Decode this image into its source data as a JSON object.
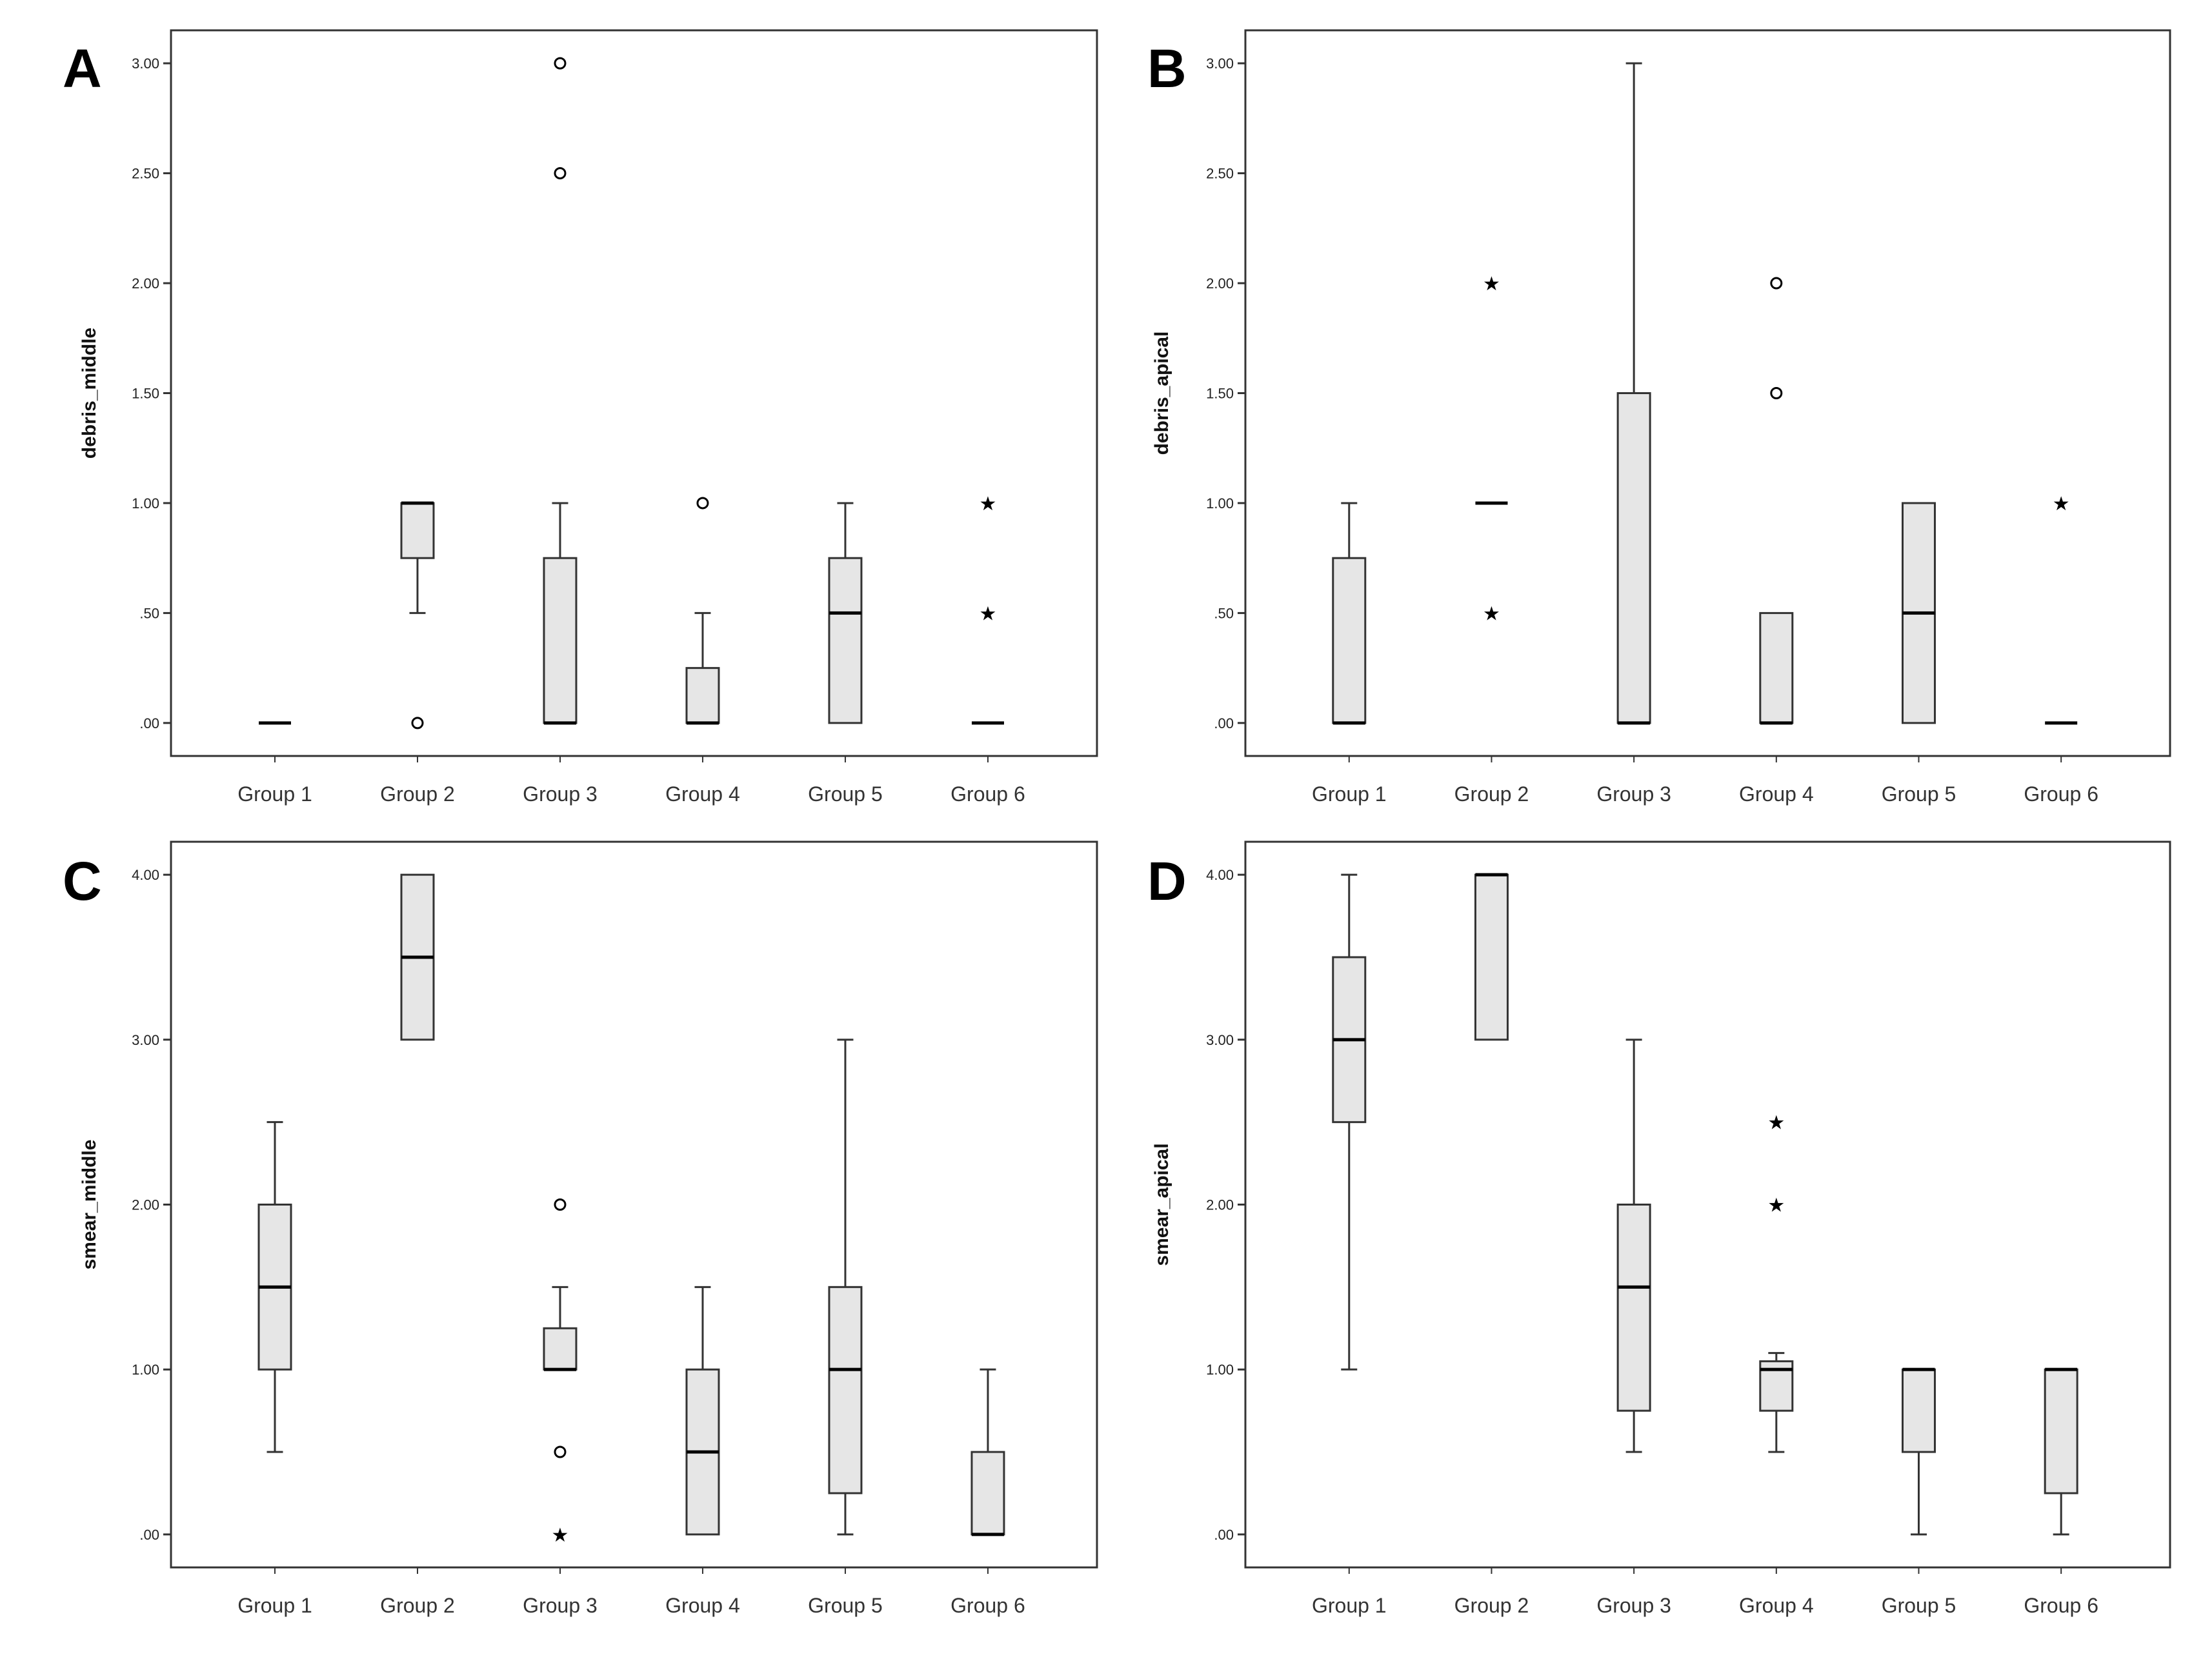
{
  "figure": {
    "colors": {
      "box_fill": "#e6e6e6",
      "stroke": "#333333",
      "median": "#000000",
      "background": "#ffffff"
    }
  },
  "chart_data": [
    {
      "panel": "A",
      "type": "boxplot",
      "ylabel": "debris_middle",
      "xlabel": "",
      "categories": [
        "Group 1",
        "Group 2",
        "Group 3",
        "Group 4",
        "Group 5",
        "Group 6"
      ],
      "ylim": [
        -0.15,
        3.15
      ],
      "yticks": [
        0,
        0.5,
        1,
        1.5,
        2,
        2.5,
        3
      ],
      "ytick_labels": [
        ".00",
        ".50",
        "1.00",
        "1.50",
        "2.00",
        "2.50",
        "3.00"
      ],
      "boxes": [
        {
          "group": "Group 1",
          "wlow": 0,
          "q1": 0,
          "median": 0,
          "q3": 0,
          "whigh": 0,
          "outliers": [],
          "extremes": []
        },
        {
          "group": "Group 2",
          "wlow": 0.5,
          "q1": 0.75,
          "median": 1,
          "q3": 1,
          "whigh": 1,
          "outliers": [
            0
          ],
          "extremes": []
        },
        {
          "group": "Group 3",
          "wlow": 0,
          "q1": 0,
          "median": 0,
          "q3": 0.75,
          "whigh": 1,
          "outliers": [
            2.5,
            3
          ],
          "extremes": []
        },
        {
          "group": "Group 4",
          "wlow": 0,
          "q1": 0,
          "median": 0,
          "q3": 0.25,
          "whigh": 0.5,
          "outliers": [
            1
          ],
          "extremes": []
        },
        {
          "group": "Group 5",
          "wlow": 0,
          "q1": 0,
          "median": 0.5,
          "q3": 0.75,
          "whigh": 1,
          "outliers": [],
          "extremes": []
        },
        {
          "group": "Group 6",
          "wlow": 0,
          "q1": 0,
          "median": 0,
          "q3": 0,
          "whigh": 0,
          "outliers": [],
          "extremes": [
            0.5,
            1
          ]
        }
      ]
    },
    {
      "panel": "B",
      "type": "boxplot",
      "ylabel": "debris_apical",
      "xlabel": "",
      "categories": [
        "Group 1",
        "Group 2",
        "Group 3",
        "Group 4",
        "Group 5",
        "Group 6"
      ],
      "ylim": [
        -0.15,
        3.15
      ],
      "yticks": [
        0,
        0.5,
        1,
        1.5,
        2,
        2.5,
        3
      ],
      "ytick_labels": [
        ".00",
        ".50",
        "1.00",
        "1.50",
        "2.00",
        "2.50",
        "3.00"
      ],
      "boxes": [
        {
          "group": "Group 1",
          "wlow": 0,
          "q1": 0,
          "median": 0,
          "q3": 0.75,
          "whigh": 1,
          "outliers": [],
          "extremes": []
        },
        {
          "group": "Group 2",
          "wlow": 1,
          "q1": 1,
          "median": 1,
          "q3": 1,
          "whigh": 1,
          "outliers": [],
          "extremes": [
            0.5,
            2
          ]
        },
        {
          "group": "Group 3",
          "wlow": 0,
          "q1": 0,
          "median": 0,
          "q3": 1.5,
          "whigh": 3,
          "outliers": [],
          "extremes": []
        },
        {
          "group": "Group 4",
          "wlow": 0,
          "q1": 0,
          "median": 0,
          "q3": 0.5,
          "whigh": 0.5,
          "outliers": [
            1.5,
            2
          ],
          "extremes": []
        },
        {
          "group": "Group 5",
          "wlow": 0,
          "q1": 0,
          "median": 0.5,
          "q3": 1,
          "whigh": 1,
          "outliers": [],
          "extremes": []
        },
        {
          "group": "Group 6",
          "wlow": 0,
          "q1": 0,
          "median": 0,
          "q3": 0,
          "whigh": 0,
          "outliers": [],
          "extremes": [
            1
          ]
        }
      ]
    },
    {
      "panel": "C",
      "type": "boxplot",
      "ylabel": "smear_middle",
      "xlabel": "",
      "categories": [
        "Group 1",
        "Group 2",
        "Group 3",
        "Group 4",
        "Group 5",
        "Group 6"
      ],
      "ylim": [
        -0.2,
        4.2
      ],
      "yticks": [
        0,
        1,
        2,
        3,
        4
      ],
      "ytick_labels": [
        ".00",
        "1.00",
        "2.00",
        "3.00",
        "4.00"
      ],
      "boxes": [
        {
          "group": "Group 1",
          "wlow": 0.5,
          "q1": 1,
          "median": 1.5,
          "q3": 2,
          "whigh": 2.5,
          "outliers": [],
          "extremes": []
        },
        {
          "group": "Group 2",
          "wlow": 3,
          "q1": 3,
          "median": 3.5,
          "q3": 4,
          "whigh": 4,
          "outliers": [],
          "extremes": []
        },
        {
          "group": "Group 3",
          "wlow": 1,
          "q1": 1,
          "median": 1,
          "q3": 1.25,
          "whigh": 1.5,
          "outliers": [
            0.5,
            2
          ],
          "extremes": [
            0
          ]
        },
        {
          "group": "Group 4",
          "wlow": 0,
          "q1": 0,
          "median": 0.5,
          "q3": 1,
          "whigh": 1.5,
          "outliers": [],
          "extremes": []
        },
        {
          "group": "Group 5",
          "wlow": 0,
          "q1": 0.25,
          "median": 1,
          "q3": 1.5,
          "whigh": 3,
          "outliers": [],
          "extremes": []
        },
        {
          "group": "Group 6",
          "wlow": 0,
          "q1": 0,
          "median": 0,
          "q3": 0.5,
          "whigh": 1,
          "outliers": [],
          "extremes": []
        }
      ]
    },
    {
      "panel": "D",
      "type": "boxplot",
      "ylabel": "smear_apical",
      "xlabel": "",
      "categories": [
        "Group 1",
        "Group 2",
        "Group 3",
        "Group 4",
        "Group 5",
        "Group 6"
      ],
      "ylim": [
        -0.2,
        4.2
      ],
      "yticks": [
        0,
        1,
        2,
        3,
        4
      ],
      "ytick_labels": [
        ".00",
        "1.00",
        "2.00",
        "3.00",
        "4.00"
      ],
      "boxes": [
        {
          "group": "Group 1",
          "wlow": 1,
          "q1": 2.5,
          "median": 3,
          "q3": 3.5,
          "whigh": 4,
          "outliers": [],
          "extremes": []
        },
        {
          "group": "Group 2",
          "wlow": 3,
          "q1": 3,
          "median": 4,
          "q3": 4,
          "whigh": 4,
          "outliers": [],
          "extremes": []
        },
        {
          "group": "Group 3",
          "wlow": 0.5,
          "q1": 0.75,
          "median": 1.5,
          "q3": 2,
          "whigh": 3,
          "outliers": [],
          "extremes": []
        },
        {
          "group": "Group 4",
          "wlow": 0.5,
          "q1": 0.75,
          "median": 1,
          "q3": 1.05,
          "whigh": 1.1,
          "outliers": [],
          "extremes": [
            2,
            2.5
          ]
        },
        {
          "group": "Group 5",
          "wlow": 0,
          "q1": 0.5,
          "median": 1,
          "q3": 1,
          "whigh": 1,
          "outliers": [],
          "extremes": []
        },
        {
          "group": "Group 6",
          "wlow": 0,
          "q1": 0.25,
          "median": 1,
          "q3": 1,
          "whigh": 1,
          "outliers": [],
          "extremes": []
        }
      ]
    }
  ]
}
